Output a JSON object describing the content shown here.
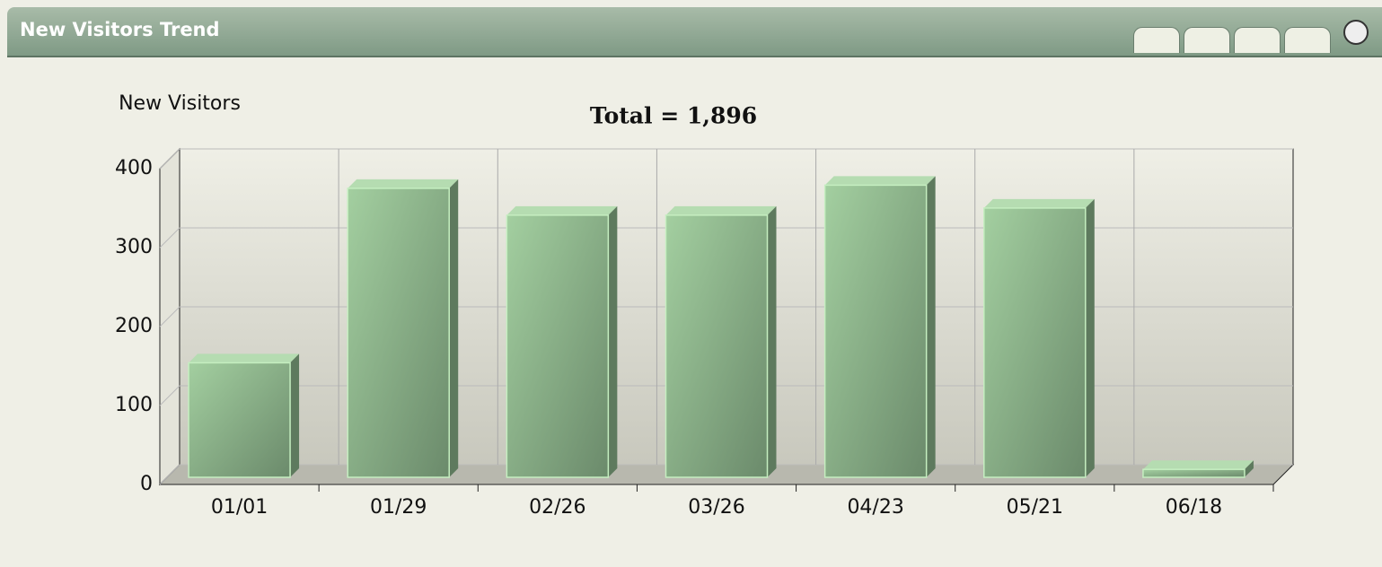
{
  "panel_title": "New Visitors Trend",
  "chart_data": {
    "type": "bar3d",
    "title": "Total = 1,896",
    "y_label": "New Visitors",
    "categories": [
      "01/01",
      "01/29",
      "02/26",
      "03/26",
      "04/23",
      "05/21",
      "06/18"
    ],
    "values": [
      145,
      366,
      332,
      332,
      370,
      341,
      10
    ],
    "color": "#8fbf8f",
    "ylim": [
      0,
      400
    ],
    "yticks": [
      0,
      100,
      200,
      300,
      400
    ],
    "grid": true
  }
}
